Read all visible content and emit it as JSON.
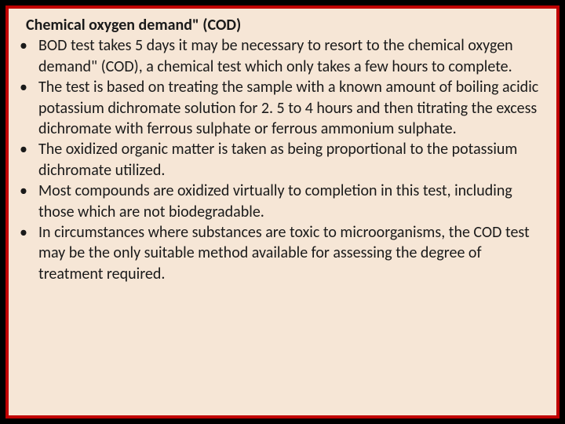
{
  "colors": {
    "slide_background": "#000000",
    "content_background": "#f6e6d6",
    "border_color": "#c00000",
    "text_color": "#1a1a1a"
  },
  "typography": {
    "font_family": "Calibri",
    "title_fontsize": 20,
    "body_fontsize": 20,
    "title_weight": "bold",
    "line_height": 1.32
  },
  "title": "Chemical oxygen demand\" (COD)",
  "bullets": [
    "BOD test takes 5 days it may be necessary to resort to the chemical oxygen demand\" (COD), a chemical test which only takes a few hours to complete.",
    "The test is based on treating the sample with a known amount of boiling acidic potassium dichromate solution for 2. 5 to 4 hours and then titrating the excess dichromate with ferrous sulphate or ferrous ammonium sulphate.",
    "The oxidized organic matter is taken as being proportional to the potassium dichromate utilized.",
    "Most compounds are oxidized virtually to completion in this test, including those which are not biodegradable.",
    "In circumstances where substances are toxic to microorganisms, the COD test may be the only suitable method available for assessing the degree of treatment required."
  ]
}
